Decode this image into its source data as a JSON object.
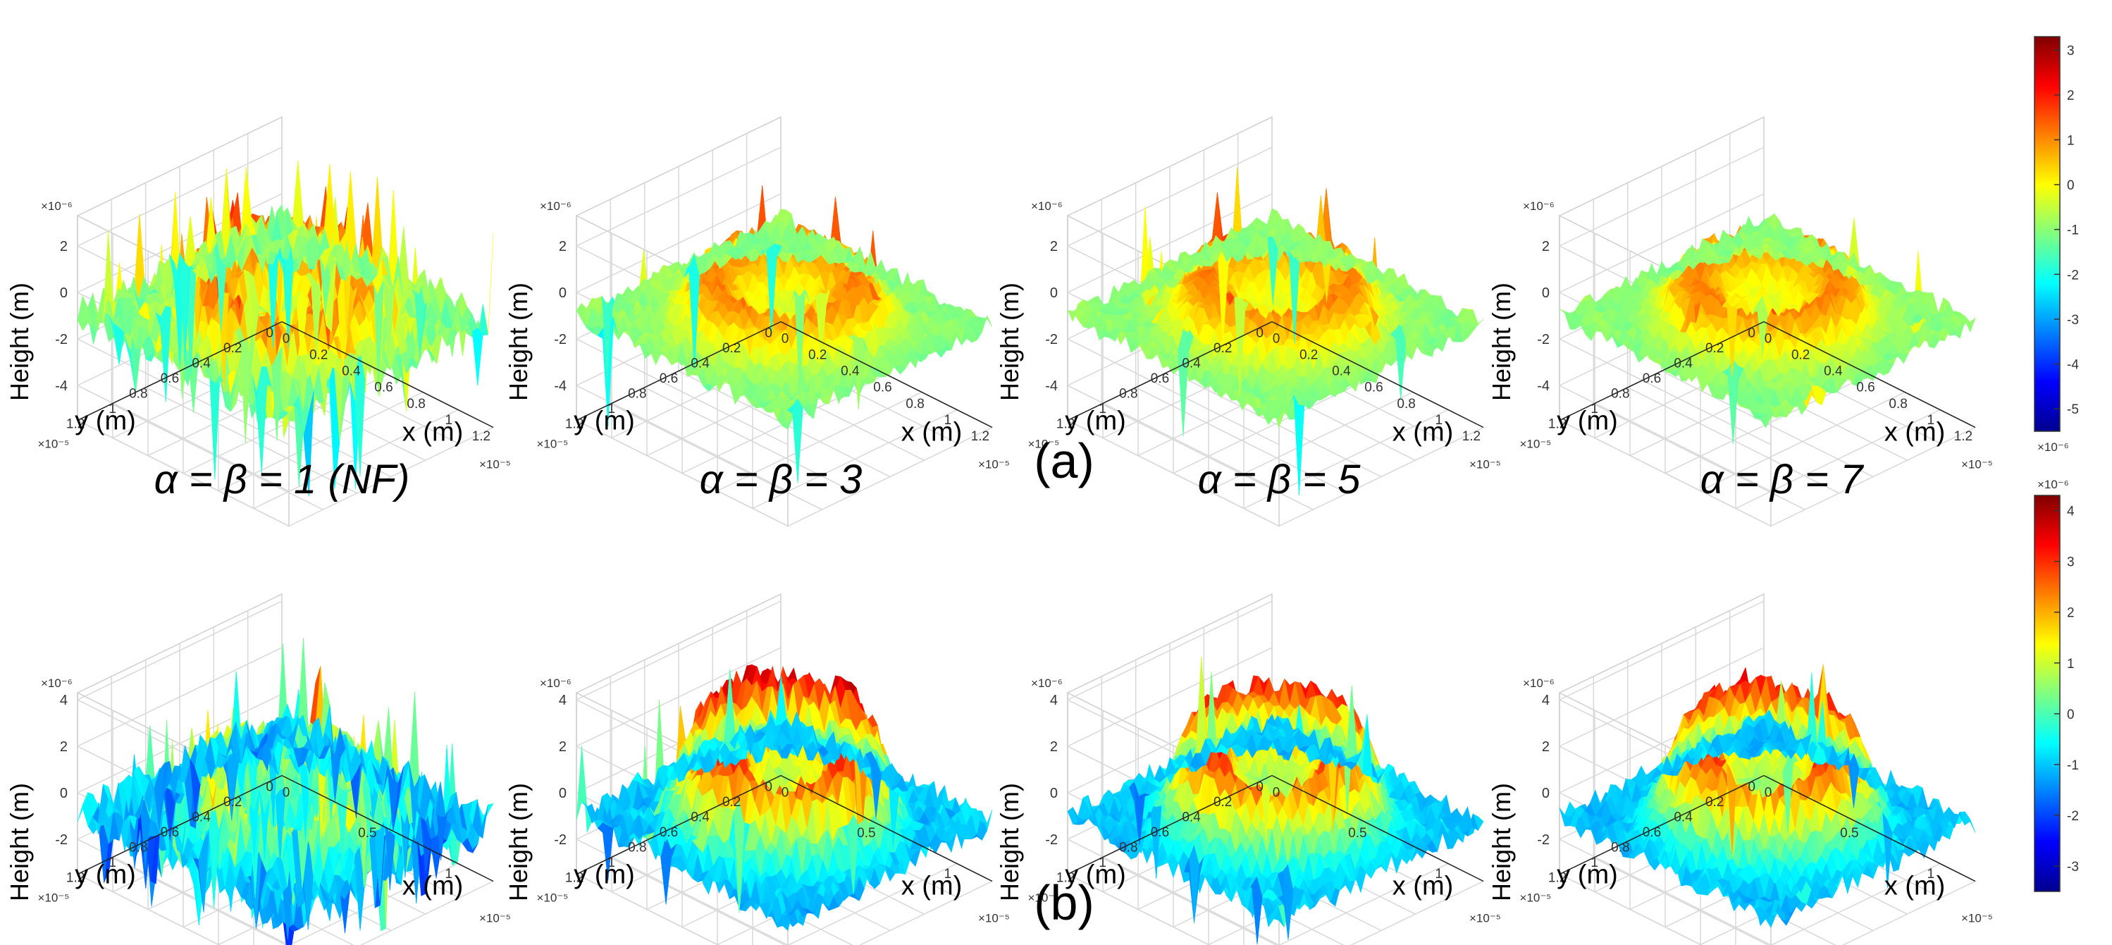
{
  "figure": {
    "row_labels": [
      "(a)",
      "(b)"
    ],
    "panel_titles": [
      "α = β = 1 (NF)",
      "α = β = 3",
      "α = β = 5",
      "α = β = 7"
    ]
  },
  "chart_data": [
    {
      "type": "surface3d",
      "row": "a",
      "column": 1,
      "title": "α = β = 1 (NF)",
      "zlabel": "Height (m)",
      "xlabel": "x (m)",
      "ylabel": "y (m)",
      "z_scale": "×10⁻⁶",
      "xy_scale": "×10⁻⁵",
      "z_ticks": [
        "2",
        "0",
        "-2",
        "-4"
      ],
      "x_ticks": [
        "0",
        "0.2",
        "0.4",
        "0.6",
        "0.8",
        "1",
        "1.2"
      ],
      "y_ticks": [
        "0",
        "0.2",
        "0.4",
        "0.6",
        "0.8",
        "1",
        "1.2"
      ],
      "zlim": [
        -5.5,
        3.3
      ],
      "xlim": [
        0,
        1.3
      ],
      "ylim": [
        0,
        1.3
      ],
      "noise": 0.9,
      "rim_height": 1.6,
      "spike_rate": 0.05
    },
    {
      "type": "surface3d",
      "row": "a",
      "column": 2,
      "title": "α = β = 3",
      "zlabel": "Height (m)",
      "xlabel": "x (m)",
      "ylabel": "y (m)",
      "z_scale": "×10⁻⁶",
      "xy_scale": "×10⁻⁵",
      "z_ticks": [
        "2",
        "0",
        "-2",
        "-4"
      ],
      "x_ticks": [
        "0",
        "0.2",
        "0.4",
        "0.6",
        "0.8",
        "1",
        "1.2"
      ],
      "y_ticks": [
        "0",
        "0.2",
        "0.4",
        "0.6",
        "0.8",
        "1",
        "1.2"
      ],
      "zlim": [
        -5.5,
        3.3
      ],
      "xlim": [
        0,
        1.3
      ],
      "ylim": [
        0,
        1.3
      ],
      "noise": 0.45,
      "rim_height": 1.5,
      "spike_rate": 0.01
    },
    {
      "type": "surface3d",
      "row": "a",
      "column": 3,
      "title": "α = β = 5",
      "zlabel": "Height (m)",
      "xlabel": "x (m)",
      "ylabel": "y (m)",
      "z_scale": "×10⁻⁶",
      "xy_scale": "×10⁻⁵",
      "z_ticks": [
        "2",
        "0",
        "-2",
        "-4"
      ],
      "x_ticks": [
        "0",
        "0.2",
        "0.4",
        "0.6",
        "0.8",
        "1",
        "1.2"
      ],
      "y_ticks": [
        "0",
        "0.2",
        "0.4",
        "0.6",
        "0.8",
        "1",
        "1.2"
      ],
      "zlim": [
        -5.5,
        3.3
      ],
      "xlim": [
        0,
        1.3
      ],
      "ylim": [
        0,
        1.3
      ],
      "noise": 0.4,
      "rim_height": 1.5,
      "spike_rate": 0.008
    },
    {
      "type": "surface3d",
      "row": "a",
      "column": 4,
      "title": "α = β = 7",
      "zlabel": "Height (m)",
      "xlabel": "x (m)",
      "ylabel": "y (m)",
      "z_scale": "×10⁻⁶",
      "xy_scale": "×10⁻⁵",
      "z_ticks": [
        "2",
        "0",
        "-2",
        "-4"
      ],
      "x_ticks": [
        "0",
        "0.2",
        "0.4",
        "0.6",
        "0.8",
        "1",
        "1.2"
      ],
      "y_ticks": [
        "0",
        "0.2",
        "0.4",
        "0.6",
        "0.8",
        "1",
        "1.2"
      ],
      "zlim": [
        -5.5,
        3.3
      ],
      "xlim": [
        0,
        1.3
      ],
      "ylim": [
        0,
        1.3
      ],
      "noise": 0.4,
      "rim_height": 1.5,
      "spike_rate": 0.008
    },
    {
      "type": "surface3d",
      "row": "b",
      "column": 1,
      "title": "",
      "zlabel": "Height (m)",
      "xlabel": "x (m)",
      "ylabel": "y (m)",
      "z_scale": "×10⁻⁶",
      "xy_scale": "×10⁻⁵",
      "z_ticks": [
        "4",
        "2",
        "0",
        "-2"
      ],
      "x_ticks": [
        "0",
        "0.5",
        "1"
      ],
      "y_ticks": [
        "0",
        "0.2",
        "0.4",
        "0.6",
        "0.8",
        "1",
        "1.2"
      ],
      "zlim": [
        -3.5,
        4.3
      ],
      "xlim": [
        0,
        1.3
      ],
      "ylim": [
        0,
        1.3
      ],
      "noise": 1.0,
      "rim_height": 1.4,
      "spike_rate": 0.06
    },
    {
      "type": "surface3d",
      "row": "b",
      "column": 2,
      "title": "",
      "zlabel": "Height (m)",
      "xlabel": "x (m)",
      "ylabel": "y (m)",
      "z_scale": "×10⁻⁶",
      "xy_scale": "×10⁻⁵",
      "z_ticks": [
        "4",
        "2",
        "0",
        "-2"
      ],
      "x_ticks": [
        "0",
        "0.5",
        "1"
      ],
      "y_ticks": [
        "0",
        "0.2",
        "0.4",
        "0.6",
        "0.8",
        "1",
        "1.2"
      ],
      "zlim": [
        -3.5,
        4.3
      ],
      "xlim": [
        0,
        1.3
      ],
      "ylim": [
        0,
        1.3
      ],
      "noise": 0.6,
      "rim_height": 3.3,
      "spike_rate": 0.012
    },
    {
      "type": "surface3d",
      "row": "b",
      "column": 3,
      "title": "",
      "zlabel": "Height (m)",
      "xlabel": "x (m)",
      "ylabel": "y (m)",
      "z_scale": "×10⁻⁶",
      "xy_scale": "×10⁻⁵",
      "z_ticks": [
        "4",
        "2",
        "0",
        "-2"
      ],
      "x_ticks": [
        "0",
        "0.5",
        "1"
      ],
      "y_ticks": [
        "0",
        "0.2",
        "0.4",
        "0.6",
        "0.8",
        "1",
        "1.2"
      ],
      "zlim": [
        -3.5,
        4.3
      ],
      "xlim": [
        0,
        1.3
      ],
      "ylim": [
        0,
        1.3
      ],
      "noise": 0.5,
      "rim_height": 3.0,
      "spike_rate": 0.01
    },
    {
      "type": "surface3d",
      "row": "b",
      "column": 4,
      "title": "",
      "zlabel": "Height (m)",
      "xlabel": "x (m)",
      "ylabel": "y (m)",
      "z_scale": "×10⁻⁶",
      "xy_scale": "×10⁻⁵",
      "z_ticks": [
        "4",
        "2",
        "0",
        "-2"
      ],
      "x_ticks": [
        "0",
        "0.5",
        "1"
      ],
      "y_ticks": [
        "0",
        "0.2",
        "0.4",
        "0.6",
        "0.8",
        "1",
        "1.2"
      ],
      "zlim": [
        -3.5,
        4.3
      ],
      "xlim": [
        0,
        1.3
      ],
      "ylim": [
        0,
        1.3
      ],
      "noise": 0.5,
      "rim_height": 3.0,
      "spike_rate": 0.01
    },
    {
      "type": "colorbar",
      "row": "a",
      "scale": "×10⁻⁶",
      "ticks": [
        "3",
        "2",
        "1",
        "0",
        "-1",
        "-2",
        "-3",
        "-4",
        "-5"
      ],
      "range": [
        -5.5,
        3.3
      ]
    },
    {
      "type": "colorbar",
      "row": "b",
      "scale": "×10⁻⁶",
      "ticks": [
        "4",
        "3",
        "2",
        "1",
        "0",
        "-1",
        "-2",
        "-3"
      ],
      "range": [
        -3.5,
        4.3
      ]
    }
  ]
}
